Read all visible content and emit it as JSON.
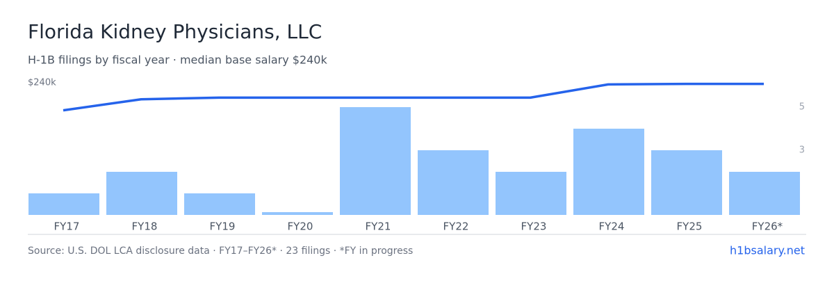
{
  "chart_data": {
    "type": "combo",
    "title": "Florida Kidney Physicians, LLC",
    "subtitle": "H-1B filings by fiscal year · median base salary $240k",
    "categories": [
      "FY17",
      "FY18",
      "FY19",
      "FY20",
      "FY21",
      "FY22",
      "FY23",
      "FY24",
      "FY25",
      "FY26*"
    ],
    "series": [
      {
        "type": "bar",
        "axis": "y2",
        "color": "#93c5fd",
        "values": [
          1,
          2,
          1,
          0,
          5,
          3,
          2,
          4,
          3,
          2
        ]
      },
      {
        "type": "line",
        "color": "#2563eb",
        "values": [
          190000,
          210000,
          213000,
          213000,
          213000,
          213000,
          213000,
          237000,
          238000,
          238000
        ]
      }
    ],
    "ylim": [
      0,
      240000
    ],
    "yticks": [
      {
        "value": 240000,
        "label": "$240k"
      }
    ],
    "y2lim": [
      0,
      6.13
    ],
    "y2ticks": [
      3,
      5
    ]
  },
  "footer": {
    "source": "Source: U.S. DOL LCA disclosure data · FY17–FY26* · 23 filings · *FY in progress",
    "brand": "h1bsalary.net"
  }
}
